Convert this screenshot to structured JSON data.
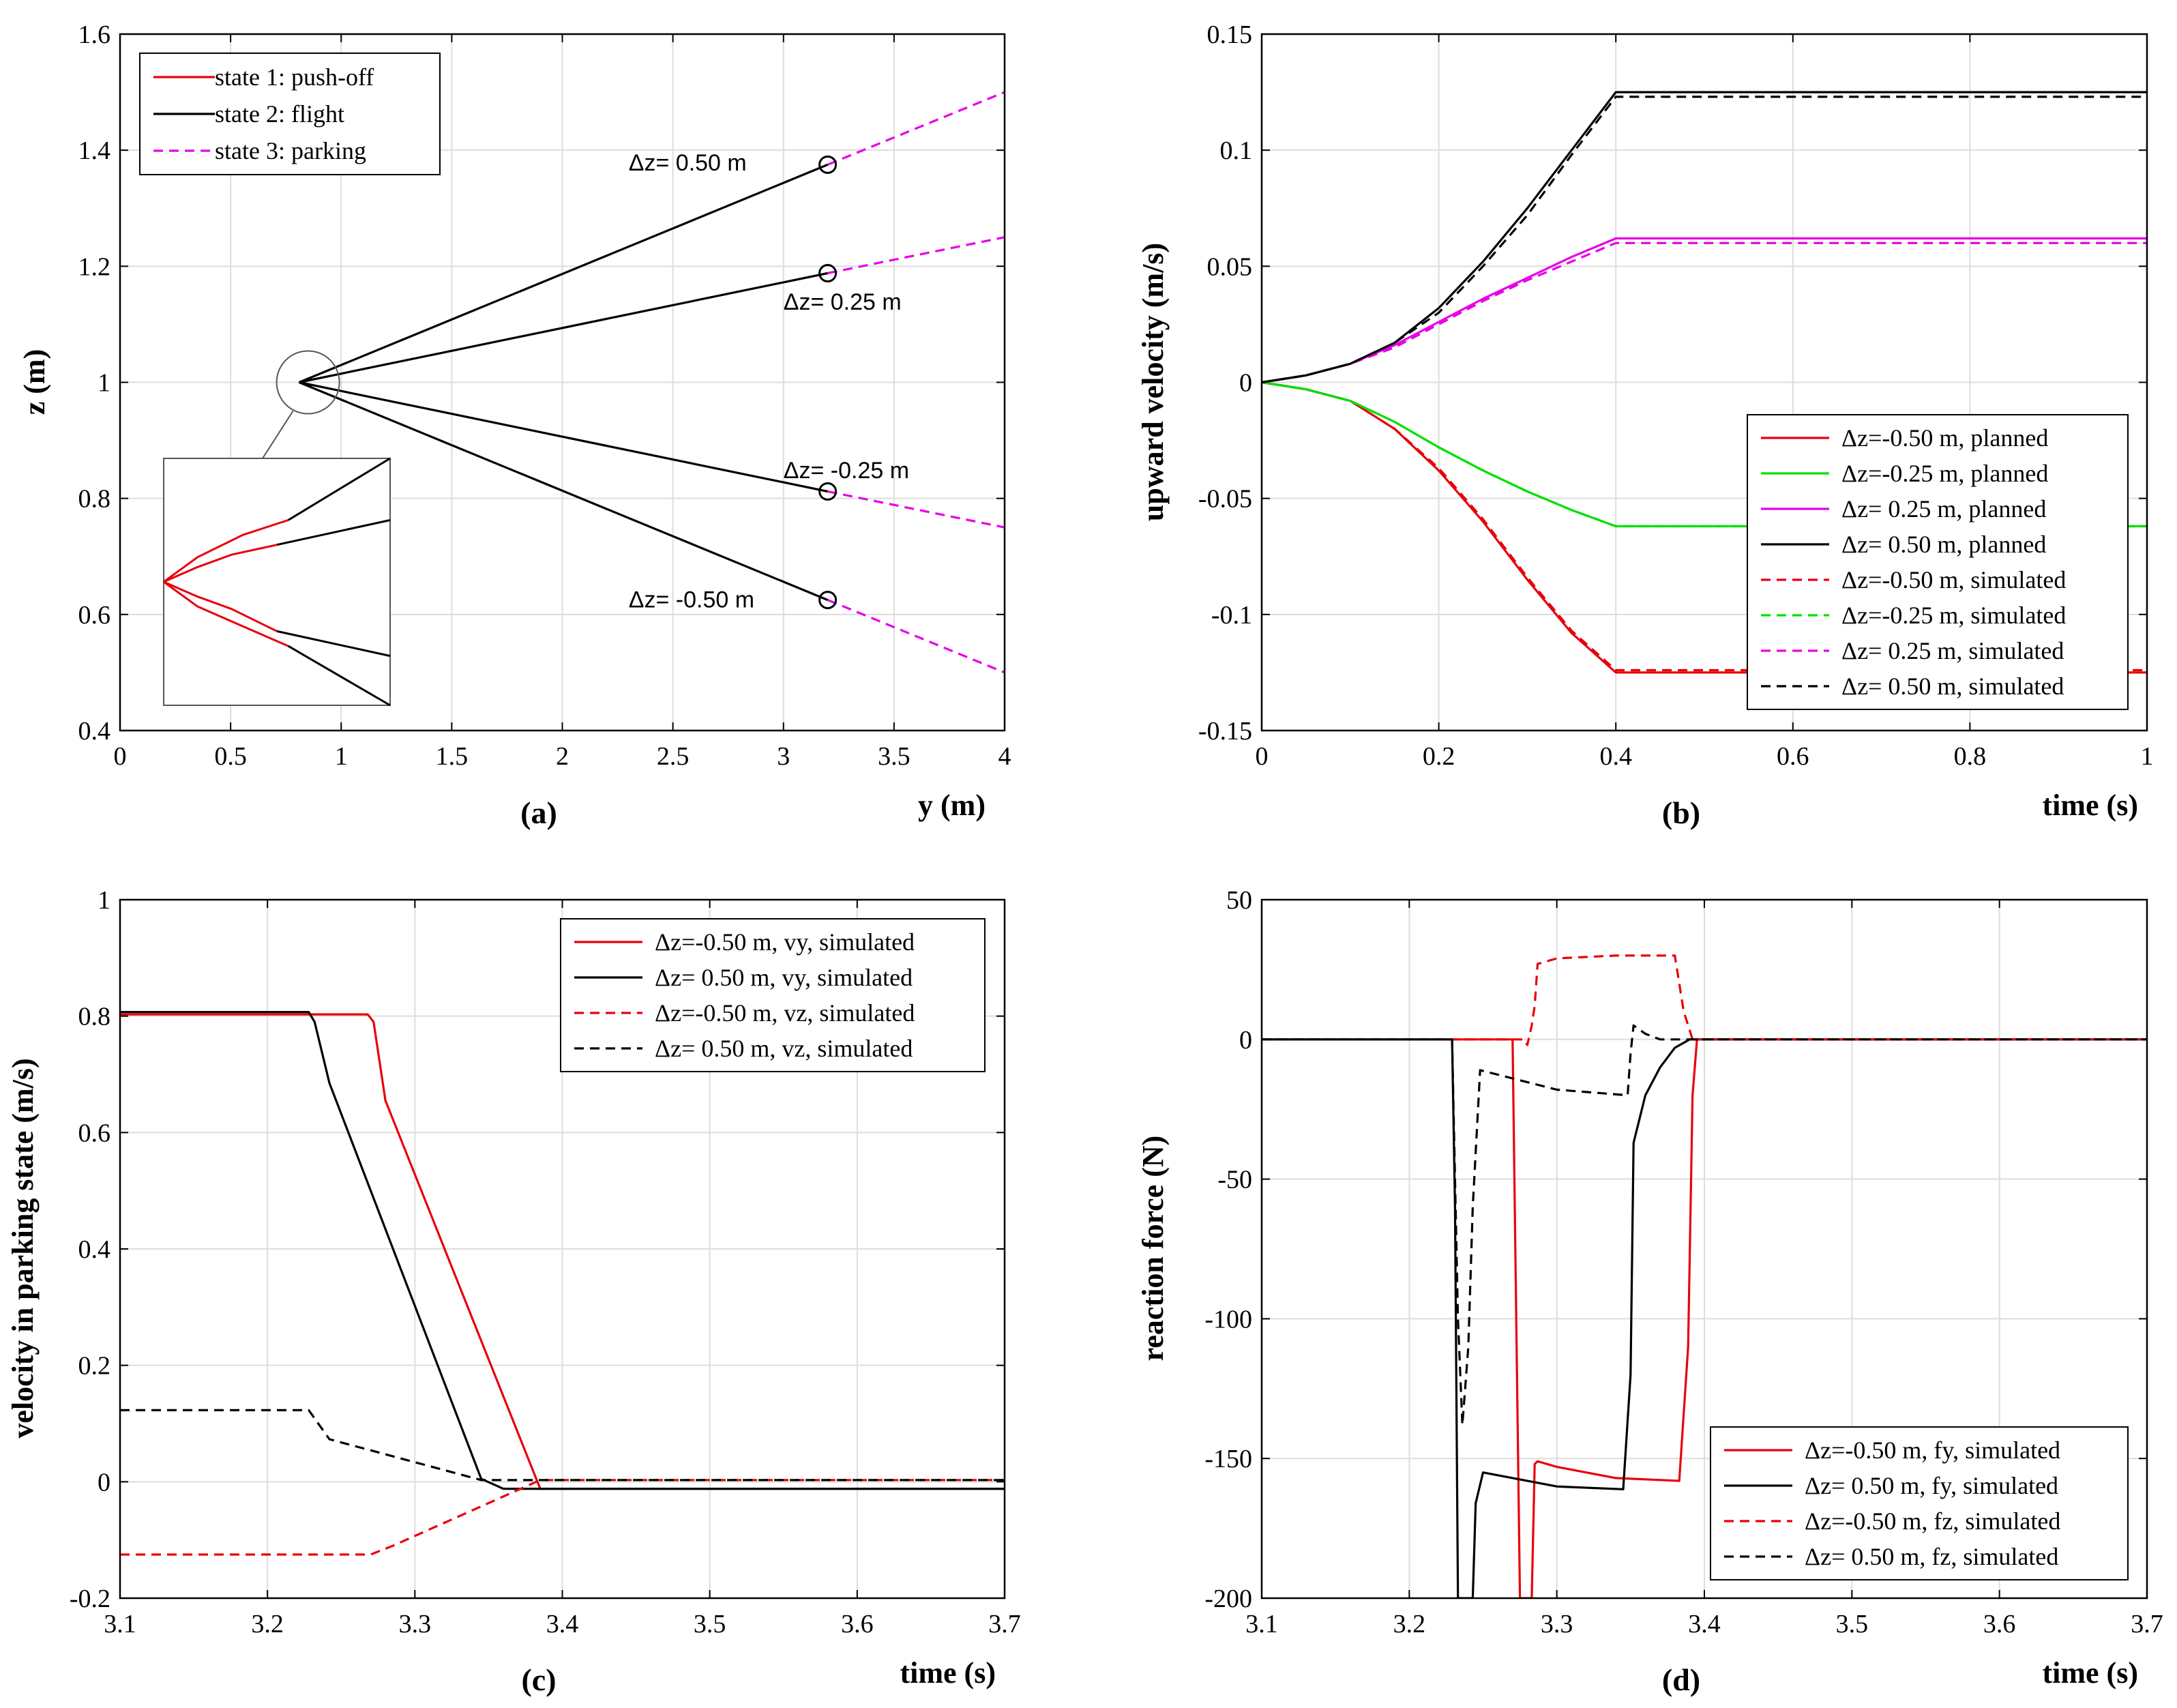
{
  "chart_data": [
    {
      "id": "a",
      "type": "line",
      "panel_label": "(a)",
      "xlabel": "y (m)",
      "ylabel": "z (m)",
      "xlim": [
        0,
        4
      ],
      "ylim": [
        0.4,
        1.6
      ],
      "xticks": [
        0,
        0.5,
        1,
        1.5,
        2,
        2.5,
        3,
        3.5,
        4
      ],
      "yticks": [
        0.4,
        0.6,
        0.8,
        1.0,
        1.2,
        1.4,
        1.6
      ],
      "xticklabels": [
        "0",
        "0.5",
        "1",
        "1.5",
        "2",
        "2.5",
        "3",
        "3.5",
        "4"
      ],
      "yticklabels": [
        "0.4",
        "0.6",
        "0.8",
        "1",
        "1.2",
        "1.4",
        "1.6"
      ],
      "grid": true,
      "legend_position": "top-left",
      "legend": [
        {
          "label": "state 1: push-off",
          "color": "#e8000b",
          "dash": false
        },
        {
          "label": "state 2: flight",
          "color": "#000000",
          "dash": false
        },
        {
          "label": "state 3: parking",
          "color": "#e600e6",
          "dash": true
        }
      ],
      "series": [
        {
          "color": "#000000",
          "dash": false,
          "x": [
            0.81,
            3.2
          ],
          "y": [
            1.0,
            1.375
          ]
        },
        {
          "color": "#000000",
          "dash": false,
          "x": [
            0.81,
            3.2
          ],
          "y": [
            1.0,
            1.188
          ]
        },
        {
          "color": "#000000",
          "dash": false,
          "x": [
            0.81,
            3.2
          ],
          "y": [
            1.0,
            0.812
          ]
        },
        {
          "color": "#000000",
          "dash": false,
          "x": [
            0.81,
            3.2
          ],
          "y": [
            1.0,
            0.625
          ]
        },
        {
          "color": "#e600e6",
          "dash": true,
          "x": [
            3.2,
            4.0
          ],
          "y": [
            1.375,
            1.5
          ]
        },
        {
          "color": "#e600e6",
          "dash": true,
          "x": [
            3.2,
            4.0
          ],
          "y": [
            1.188,
            1.25
          ]
        },
        {
          "color": "#e600e6",
          "dash": true,
          "x": [
            3.2,
            4.0
          ],
          "y": [
            0.812,
            0.75
          ]
        },
        {
          "color": "#e600e6",
          "dash": true,
          "x": [
            3.2,
            4.0
          ],
          "y": [
            0.625,
            0.5
          ]
        }
      ],
      "endpoints": [
        {
          "x": 3.2,
          "y": 1.375
        },
        {
          "x": 3.2,
          "y": 1.188
        },
        {
          "x": 3.2,
          "y": 0.812
        },
        {
          "x": 3.2,
          "y": 0.625
        }
      ],
      "annotations": [
        {
          "text": "Δz= 0.50 m",
          "x": 2.3,
          "y": 1.365
        },
        {
          "text": "Δz= 0.25 m",
          "x": 3.0,
          "y": 1.125
        },
        {
          "text": "Δz= -0.25 m",
          "x": 3.0,
          "y": 0.835
        },
        {
          "text": "Δz= -0.50 m",
          "x": 2.3,
          "y": 0.612
        }
      ],
      "zoom_circle": {
        "x": 0.85,
        "y": 1.0
      },
      "inset_lines": [
        {
          "color": "#000000",
          "x": [
            0.55,
            1.0
          ],
          "y": [
            0.75,
            1.0
          ]
        },
        {
          "color": "#000000",
          "x": [
            0.5,
            1.0
          ],
          "y": [
            0.65,
            0.75
          ]
        },
        {
          "color": "#000000",
          "x": [
            0.5,
            1.0
          ],
          "y": [
            0.3,
            0.2
          ]
        },
        {
          "color": "#000000",
          "x": [
            0.55,
            1.0
          ],
          "y": [
            0.24,
            0.0
          ]
        },
        {
          "color": "#e8000b",
          "x": [
            0.0,
            0.15,
            0.35,
            0.55
          ],
          "y": [
            0.5,
            0.6,
            0.69,
            0.75
          ]
        },
        {
          "color": "#e8000b",
          "x": [
            0.0,
            0.15,
            0.3,
            0.5
          ],
          "y": [
            0.5,
            0.56,
            0.61,
            0.65
          ]
        },
        {
          "color": "#e8000b",
          "x": [
            0.0,
            0.15,
            0.3,
            0.5
          ],
          "y": [
            0.5,
            0.44,
            0.39,
            0.3
          ]
        },
        {
          "color": "#e8000b",
          "x": [
            0.0,
            0.15,
            0.35,
            0.55
          ],
          "y": [
            0.5,
            0.4,
            0.32,
            0.24
          ]
        }
      ]
    },
    {
      "id": "b",
      "type": "line",
      "panel_label": "(b)",
      "xlabel": "time (s)",
      "ylabel": "upward velocity (m/s)",
      "xlim": [
        0,
        1
      ],
      "ylim": [
        -0.15,
        0.15
      ],
      "xticks": [
        0,
        0.2,
        0.4,
        0.6,
        0.8,
        1
      ],
      "yticks": [
        -0.15,
        -0.1,
        -0.05,
        0,
        0.05,
        0.1,
        0.15
      ],
      "xticklabels": [
        "0",
        "0.2",
        "0.4",
        "0.6",
        "0.8",
        "1"
      ],
      "yticklabels": [
        "-0.15",
        "-0.1",
        "-0.05",
        "0",
        "0.05",
        "0.1",
        "0.15"
      ],
      "grid": true,
      "legend_position": "bottom-right",
      "series": [
        {
          "name": "Δz=-0.50 m, planned",
          "color": "#e8000b",
          "dash": false,
          "x": [
            0,
            0.05,
            0.1,
            0.15,
            0.2,
            0.25,
            0.3,
            0.35,
            0.4,
            1.0
          ],
          "y": [
            0,
            -0.003,
            -0.008,
            -0.02,
            -0.038,
            -0.06,
            -0.085,
            -0.108,
            -0.125,
            -0.125
          ]
        },
        {
          "name": "Δz=-0.25 m, planned",
          "color": "#00e000",
          "dash": false,
          "x": [
            0,
            0.05,
            0.1,
            0.15,
            0.2,
            0.25,
            0.3,
            0.35,
            0.4,
            1.0
          ],
          "y": [
            0,
            -0.003,
            -0.008,
            -0.017,
            -0.028,
            -0.038,
            -0.047,
            -0.055,
            -0.062,
            -0.062
          ]
        },
        {
          "name": "Δz= 0.25 m, planned",
          "color": "#e600e6",
          "dash": false,
          "x": [
            0,
            0.05,
            0.1,
            0.15,
            0.2,
            0.25,
            0.3,
            0.35,
            0.4,
            1.0
          ],
          "y": [
            0,
            0.003,
            0.008,
            0.016,
            0.026,
            0.036,
            0.045,
            0.054,
            0.062,
            0.062
          ]
        },
        {
          "name": "Δz= 0.50 m, planned",
          "color": "#000000",
          "dash": false,
          "x": [
            0,
            0.05,
            0.1,
            0.15,
            0.2,
            0.25,
            0.3,
            0.35,
            0.4,
            1.0
          ],
          "y": [
            0,
            0.003,
            0.008,
            0.017,
            0.032,
            0.052,
            0.075,
            0.1,
            0.125,
            0.125
          ]
        },
        {
          "name": "Δz=-0.50 m, simulated",
          "color": "#e8000b",
          "dash": true,
          "x": [
            0,
            0.05,
            0.1,
            0.15,
            0.2,
            0.25,
            0.3,
            0.35,
            0.4,
            1.0
          ],
          "y": [
            0,
            -0.003,
            -0.008,
            -0.02,
            -0.037,
            -0.059,
            -0.084,
            -0.107,
            -0.124,
            -0.124
          ]
        },
        {
          "name": "Δz=-0.25 m, simulated",
          "color": "#00e000",
          "dash": true,
          "x": [
            0,
            0.05,
            0.1,
            0.15,
            0.2,
            0.25,
            0.3,
            0.35,
            0.4,
            1.0
          ],
          "y": [
            0,
            -0.003,
            -0.008,
            -0.017,
            -0.028,
            -0.038,
            -0.047,
            -0.055,
            -0.062,
            -0.062
          ]
        },
        {
          "name": "Δz= 0.25 m, simulated",
          "color": "#e600e6",
          "dash": true,
          "x": [
            0,
            0.05,
            0.1,
            0.15,
            0.2,
            0.25,
            0.3,
            0.35,
            0.4,
            1.0
          ],
          "y": [
            0,
            0.003,
            0.008,
            0.015,
            0.025,
            0.035,
            0.044,
            0.052,
            0.06,
            0.06
          ]
        },
        {
          "name": "Δz= 0.50 m, simulated",
          "color": "#000000",
          "dash": true,
          "x": [
            0,
            0.05,
            0.1,
            0.15,
            0.2,
            0.25,
            0.3,
            0.35,
            0.4,
            1.0
          ],
          "y": [
            0,
            0.003,
            0.008,
            0.017,
            0.03,
            0.05,
            0.072,
            0.098,
            0.123,
            0.123
          ]
        }
      ]
    },
    {
      "id": "c",
      "type": "line",
      "panel_label": "(c)",
      "xlabel": "time (s)",
      "ylabel": "velocity in parking state (m/s)",
      "xlim": [
        3.1,
        3.7
      ],
      "ylim": [
        -0.2,
        1.0
      ],
      "xticks": [
        3.1,
        3.2,
        3.3,
        3.4,
        3.5,
        3.6,
        3.7
      ],
      "yticks": [
        -0.2,
        0,
        0.2,
        0.4,
        0.6,
        0.8,
        1.0
      ],
      "xticklabels": [
        "3.1",
        "3.2",
        "3.3",
        "3.4",
        "3.5",
        "3.6",
        "3.7"
      ],
      "yticklabels": [
        "-0.2",
        "0",
        "0.2",
        "0.4",
        "0.6",
        "0.8",
        "1"
      ],
      "grid": true,
      "legend_position": "top-right",
      "series": [
        {
          "name": "Δz=-0.50 m, vy, simulated",
          "color": "#e8000b",
          "dash": false,
          "x": [
            3.1,
            3.268,
            3.272,
            3.28,
            3.385,
            3.7
          ],
          "y": [
            0.803,
            0.803,
            0.79,
            0.655,
            -0.012,
            -0.012
          ]
        },
        {
          "name": "Δz= 0.50 m, vy, simulated",
          "color": "#000000",
          "dash": false,
          "x": [
            3.1,
            3.228,
            3.232,
            3.242,
            3.345,
            3.36,
            3.7
          ],
          "y": [
            0.807,
            0.807,
            0.79,
            0.685,
            0.005,
            -0.012,
            -0.012
          ]
        },
        {
          "name": "Δz=-0.50 m, vz, simulated",
          "color": "#e8000b",
          "dash": true,
          "x": [
            3.1,
            3.27,
            3.285,
            3.385,
            3.7
          ],
          "y": [
            -0.125,
            -0.125,
            -0.11,
            0.003,
            0.003
          ]
        },
        {
          "name": "Δz= 0.50 m, vz, simulated",
          "color": "#000000",
          "dash": true,
          "x": [
            3.1,
            3.228,
            3.242,
            3.345,
            3.36,
            3.7
          ],
          "y": [
            0.123,
            0.123,
            0.073,
            0.003,
            0.003,
            0.003
          ]
        }
      ]
    },
    {
      "id": "d",
      "type": "line",
      "panel_label": "(d)",
      "xlabel": "time (s)",
      "ylabel": "reaction force (N)",
      "xlim": [
        3.1,
        3.7
      ],
      "ylim": [
        -200,
        50
      ],
      "xticks": [
        3.1,
        3.2,
        3.3,
        3.4,
        3.5,
        3.6,
        3.7
      ],
      "yticks": [
        -200,
        -150,
        -100,
        -50,
        0,
        50
      ],
      "xticklabels": [
        "3.1",
        "3.2",
        "3.3",
        "3.4",
        "3.5",
        "3.6",
        "3.7"
      ],
      "yticklabels": [
        "-200",
        "-150",
        "-100",
        "-50",
        "0",
        "50"
      ],
      "grid": true,
      "legend_position": "bottom-right",
      "series": [
        {
          "name": "Δz=-0.50 m, fy, simulated",
          "color": "#e8000b",
          "dash": false,
          "x": [
            3.1,
            3.27,
            3.272,
            3.275,
            3.283,
            3.285,
            3.287,
            3.3,
            3.34,
            3.383,
            3.389,
            3.392,
            3.395,
            3.7
          ],
          "y": [
            0,
            0,
            -80,
            -200,
            -200,
            -152,
            -151,
            -153,
            -157,
            -158,
            -110,
            -20,
            0,
            0
          ]
        },
        {
          "name": "Δz= 0.50 m, fy, simulated",
          "color": "#000000",
          "dash": false,
          "x": [
            3.1,
            3.229,
            3.231,
            3.233,
            3.243,
            3.245,
            3.25,
            3.3,
            3.345,
            3.35,
            3.352,
            3.36,
            3.37,
            3.38,
            3.39,
            3.7
          ],
          "y": [
            0,
            0,
            -60,
            -200,
            -200,
            -166,
            -155,
            -160,
            -161,
            -120,
            -37,
            -20,
            -10,
            -3,
            0,
            0
          ]
        },
        {
          "name": "Δz=-0.50 m, fz, simulated",
          "color": "#e8000b",
          "dash": true,
          "x": [
            3.1,
            3.278,
            3.28,
            3.283,
            3.285,
            3.287,
            3.3,
            3.34,
            3.38,
            3.386,
            3.392,
            3.7
          ],
          "y": [
            0,
            0,
            -2,
            5,
            12,
            27,
            29,
            30,
            30,
            10,
            0,
            0
          ]
        },
        {
          "name": "Δz= 0.50 m, fz, simulated",
          "color": "#000000",
          "dash": true,
          "x": [
            3.1,
            3.229,
            3.233,
            3.236,
            3.24,
            3.243,
            3.248,
            3.3,
            3.348,
            3.35,
            3.352,
            3.36,
            3.37,
            3.7
          ],
          "y": [
            0,
            0,
            -100,
            -138,
            -110,
            -60,
            -11,
            -18,
            -20,
            -5,
            5,
            2,
            0,
            0
          ]
        }
      ]
    }
  ]
}
